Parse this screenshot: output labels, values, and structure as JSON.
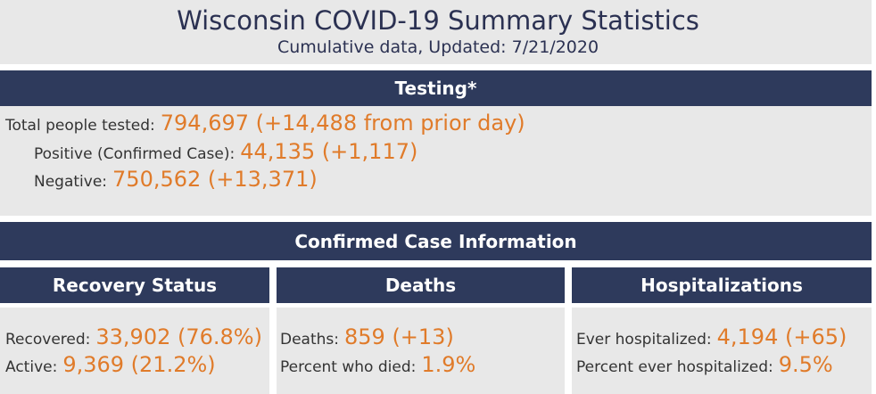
{
  "header": {
    "title": "Wisconsin COVID-19 Summary Statistics",
    "subtitle": "Cumulative data, Updated: 7/21/2020"
  },
  "testing": {
    "heading": "Testing*",
    "total_label": "Total people tested:",
    "total_value": "794,697 (+14,488 from prior day)",
    "positive_label": "Positive (Confirmed Case):",
    "positive_value": "44,135 (+1,117)",
    "negative_label": "Negative:",
    "negative_value": "750,562 (+13,371)"
  },
  "case_info": {
    "heading": "Confirmed Case Information"
  },
  "recovery": {
    "heading": "Recovery Status",
    "recovered_label": "Recovered:",
    "recovered_value": "33,902 (76.8%)",
    "active_label": "Active:",
    "active_value": "9,369 (21.2%)"
  },
  "deaths": {
    "heading": "Deaths",
    "deaths_label": "Deaths:",
    "deaths_value": "859 (+13)",
    "percent_label": "Percent who died:",
    "percent_value": "1.9%"
  },
  "hospitalizations": {
    "heading": "Hospitalizations",
    "ever_label": "Ever hospitalized:",
    "ever_value": "4,194 (+65)",
    "percent_label": "Percent ever hospitalized:",
    "percent_value": "9.5%"
  },
  "colors": {
    "bar": "#2e3a5c",
    "value": "#e07b2a",
    "panel": "#e8e8e8"
  }
}
